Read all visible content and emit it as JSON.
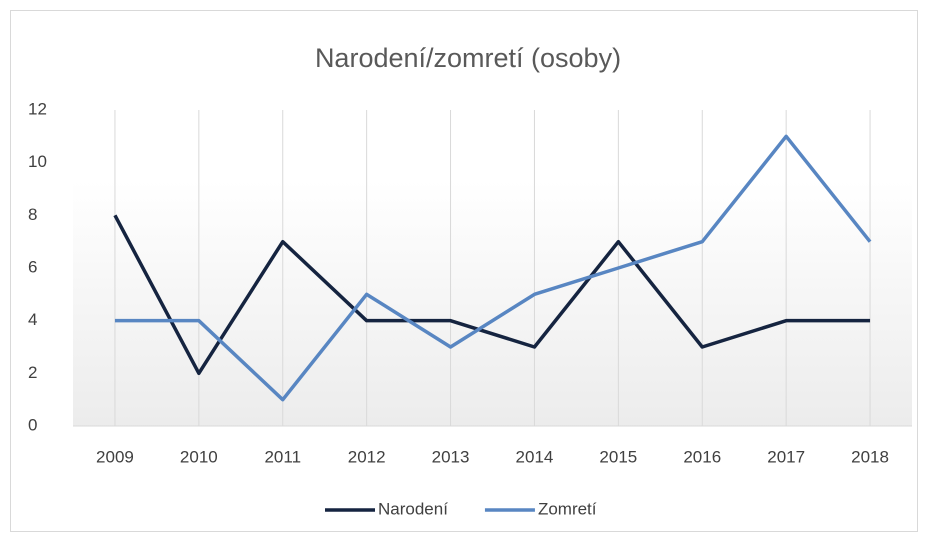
{
  "chart_data": {
    "type": "line",
    "title": "Narodení/zomretí (osoby)",
    "categories": [
      "2009",
      "2010",
      "2011",
      "2012",
      "2013",
      "2014",
      "2015",
      "2016",
      "2017",
      "2018"
    ],
    "series": [
      {
        "name": "Narodení",
        "color": "#152440",
        "values": [
          8,
          2,
          7,
          4,
          4,
          3,
          7,
          3,
          4,
          4
        ]
      },
      {
        "name": "Zomretí",
        "color": "#5886c2",
        "values": [
          4,
          4,
          1,
          5,
          3,
          5,
          6,
          7,
          11,
          7
        ]
      }
    ],
    "ylim": [
      0,
      12
    ],
    "yticks": [
      0,
      2,
      4,
      6,
      8,
      10,
      12
    ],
    "grid": true,
    "legend": "bottom"
  }
}
